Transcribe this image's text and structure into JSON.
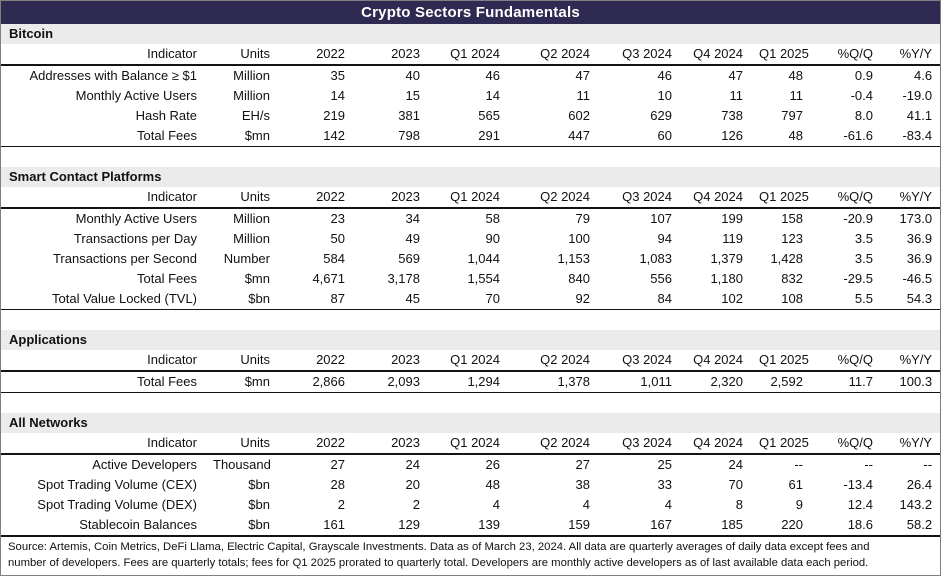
{
  "title": "Crypto Sectors Fundamentals",
  "colors": {
    "title_bar_bg": "#2f2a52",
    "title_bar_text": "#ffffff",
    "section_band_bg": "#ebebeb",
    "text": "#111111"
  },
  "chart_data": {
    "type": "table",
    "title": "Crypto Sectors Fundamentals",
    "columns": [
      "Indicator",
      "Units",
      "2022",
      "2023",
      "Q1 2024",
      "Q2 2024",
      "Q3 2024",
      "Q4 2024",
      "Q1 2025",
      "%Q/Q",
      "%Y/Y"
    ],
    "sections": [
      {
        "name": "Bitcoin",
        "rows": [
          {
            "indicator": "Addresses with Balance ≥ $1",
            "indent": false,
            "units": "Million",
            "values": [
              "35",
              "40",
              "46",
              "47",
              "46",
              "47",
              "48",
              "0.9",
              "4.6"
            ]
          },
          {
            "indicator": "Monthly Active Users",
            "indent": false,
            "units": "Million",
            "values": [
              "14",
              "15",
              "14",
              "11",
              "10",
              "11",
              "11",
              "-0.4",
              "-19.0"
            ]
          },
          {
            "indicator": "Hash Rate",
            "indent": false,
            "units": "EH/s",
            "values": [
              "219",
              "381",
              "565",
              "602",
              "629",
              "738",
              "797",
              "8.0",
              "41.1"
            ]
          },
          {
            "indicator": "Total Fees",
            "indent": false,
            "units": "$mn",
            "values": [
              "142",
              "798",
              "291",
              "447",
              "60",
              "126",
              "48",
              "-61.6",
              "-83.4"
            ]
          }
        ]
      },
      {
        "name": "Smart Contact Platforms",
        "rows": [
          {
            "indicator": "Monthly Active Users",
            "indent": false,
            "units": "Million",
            "values": [
              "23",
              "34",
              "58",
              "79",
              "107",
              "199",
              "158",
              "-20.9",
              "173.0"
            ]
          },
          {
            "indicator": "Transactions per Day",
            "indent": false,
            "units": "Million",
            "values": [
              "50",
              "49",
              "90",
              "100",
              "94",
              "119",
              "123",
              "3.5",
              "36.9"
            ]
          },
          {
            "indicator": "Transactions per Second",
            "indent": true,
            "units": "Number",
            "values": [
              "584",
              "569",
              "1,044",
              "1,153",
              "1,083",
              "1,379",
              "1,428",
              "3.5",
              "36.9"
            ]
          },
          {
            "indicator": "Total Fees",
            "indent": false,
            "units": "$mn",
            "values": [
              "4,671",
              "3,178",
              "1,554",
              "840",
              "556",
              "1,180",
              "832",
              "-29.5",
              "-46.5"
            ]
          },
          {
            "indicator": "Total Value Locked (TVL)",
            "indent": false,
            "units": "$bn",
            "values": [
              "87",
              "45",
              "70",
              "92",
              "84",
              "102",
              "108",
              "5.5",
              "54.3"
            ]
          }
        ]
      },
      {
        "name": "Applications",
        "rows": [
          {
            "indicator": "Total Fees",
            "indent": false,
            "units": "$mn",
            "values": [
              "2,866",
              "2,093",
              "1,294",
              "1,378",
              "1,011",
              "2,320",
              "2,592",
              "11.7",
              "100.3"
            ]
          }
        ]
      },
      {
        "name": "All Networks",
        "rows": [
          {
            "indicator": "Active Developers",
            "indent": false,
            "units": "Thousand",
            "values": [
              "27",
              "24",
              "26",
              "27",
              "25",
              "24",
              "--",
              "--",
              "--"
            ]
          },
          {
            "indicator": "Spot Trading Volume (CEX)",
            "indent": false,
            "units": "$bn",
            "values": [
              "28",
              "20",
              "48",
              "38",
              "33",
              "70",
              "61",
              "-13.4",
              "26.4"
            ]
          },
          {
            "indicator": "Spot Trading Volume (DEX)",
            "indent": false,
            "units": "$bn",
            "values": [
              "2",
              "2",
              "4",
              "4",
              "4",
              "8",
              "9",
              "12.4",
              "143.2"
            ]
          },
          {
            "indicator": "Stablecoin Balances",
            "indent": false,
            "units": "$bn",
            "values": [
              "161",
              "129",
              "139",
              "159",
              "167",
              "185",
              "220",
              "18.6",
              "58.2"
            ]
          }
        ]
      }
    ],
    "source_note": [
      "Source: Artemis, Coin Metrics, DeFi Llama, Electric Capital, Grayscale Investments. Data as of March 23, 2024. All data are quarterly averages of daily data except fees and",
      "number of developers. Fees are quarterly totals; fees for Q1 2025 prorated to quarterly total. Developers are monthly active developers as of last available data each period."
    ]
  }
}
